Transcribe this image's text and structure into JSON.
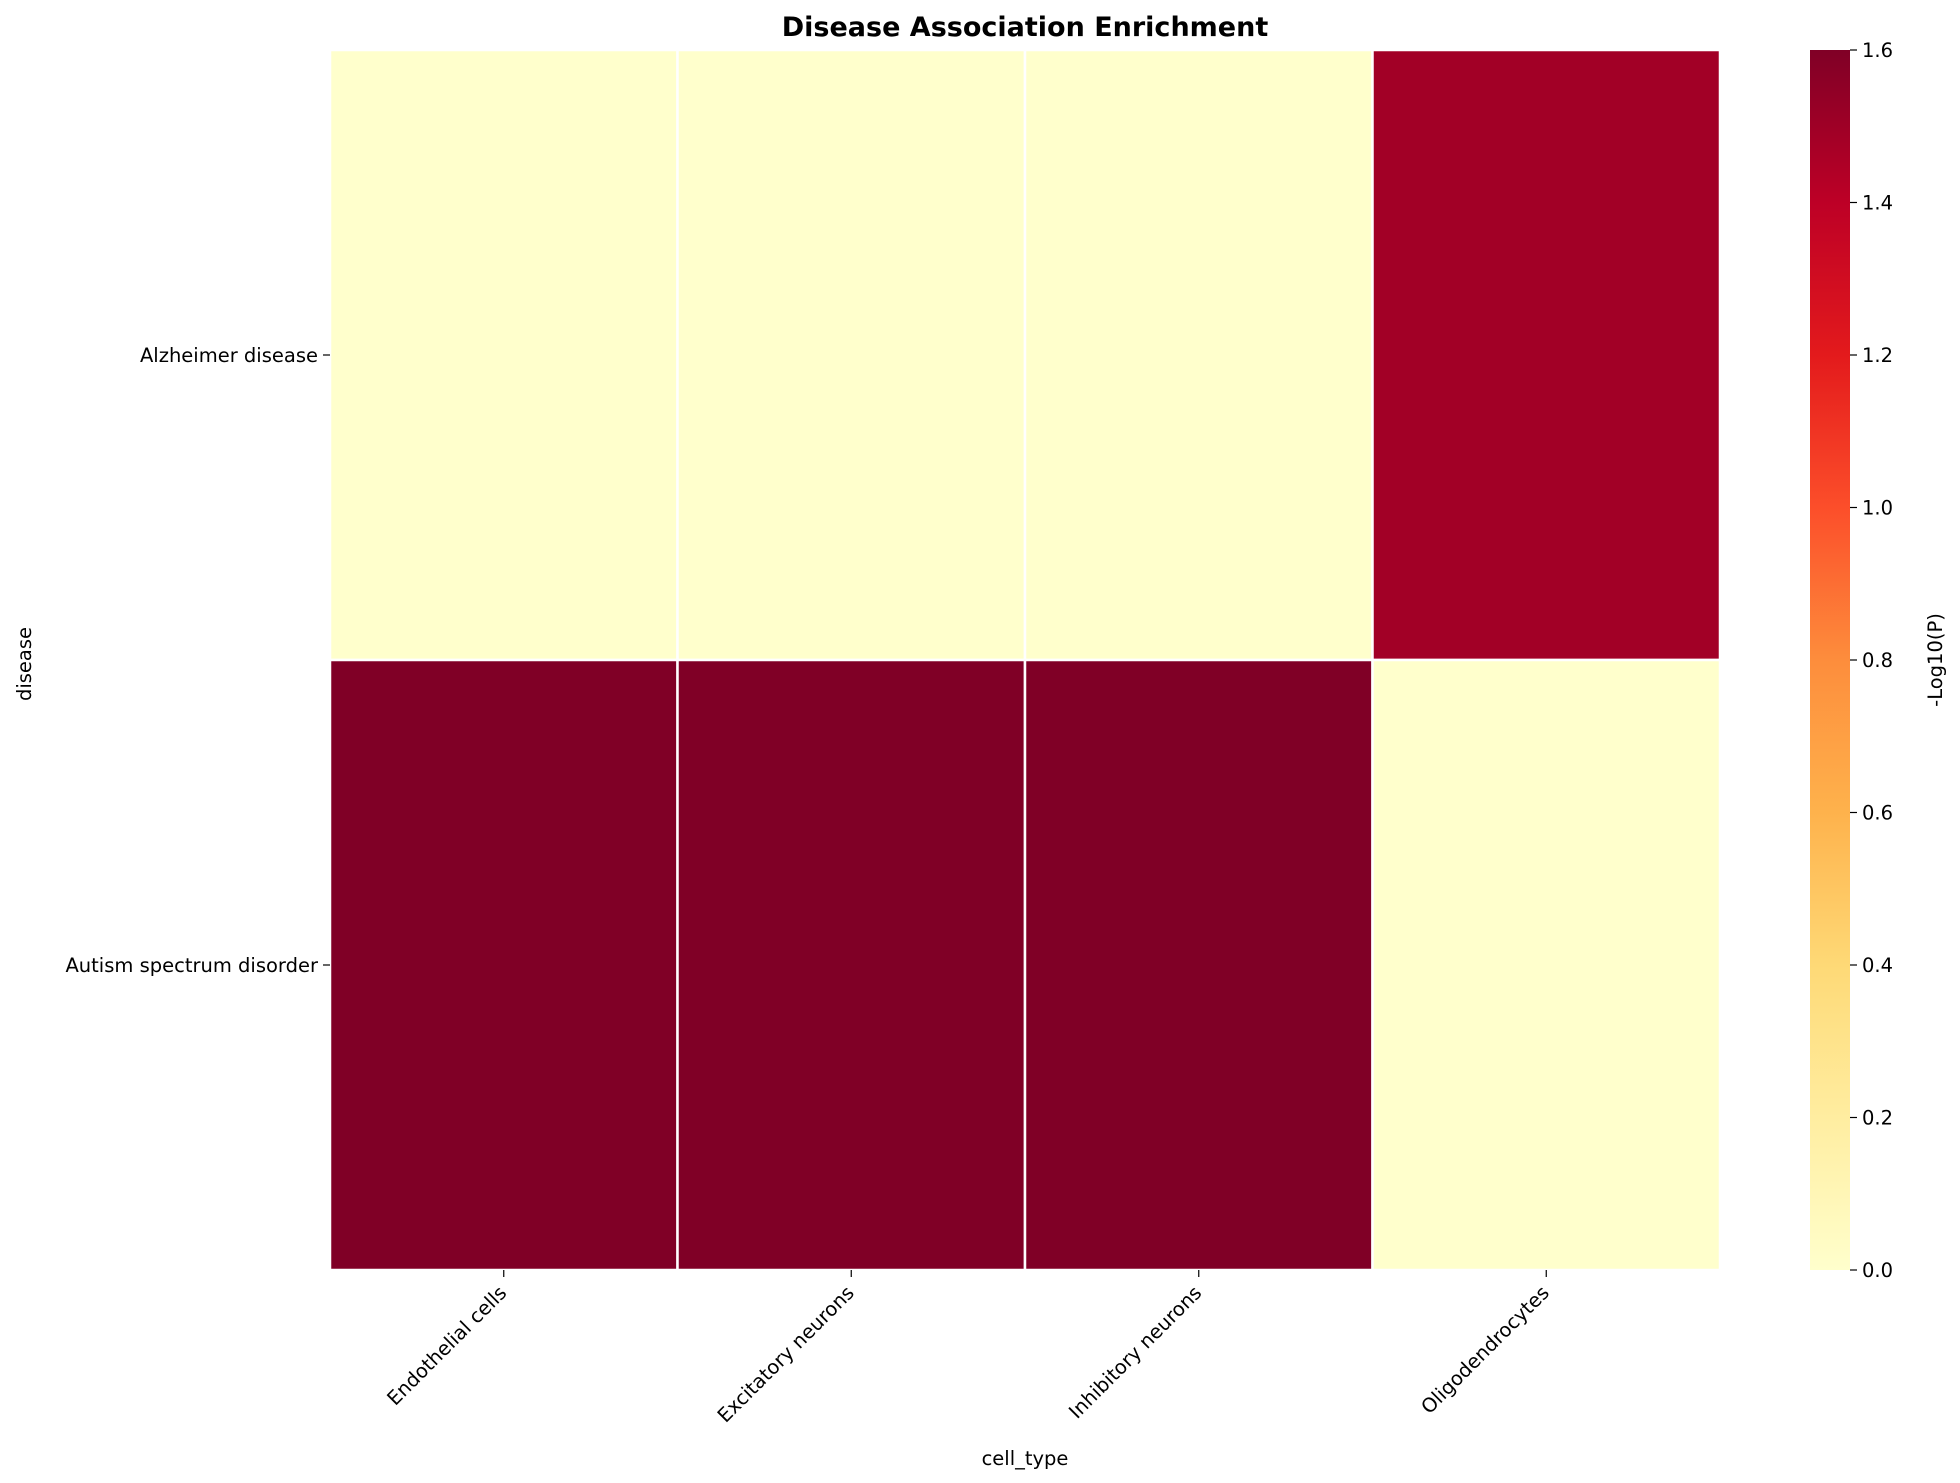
{
  "chart_data": {
    "type": "heatmap",
    "title": "Disease Association Enrichment",
    "xlabel": "cell_type",
    "ylabel": "disease",
    "x_categories": [
      "Endothelial cells",
      "Excitatory neurons",
      "Inhibitory neurons",
      "Oligodendrocytes"
    ],
    "y_categories": [
      "Alzheimer disease",
      "Autism spectrum disorder"
    ],
    "values": [
      [
        0.0,
        0.0,
        0.0,
        1.49
      ],
      [
        1.6,
        1.6,
        1.6,
        0.0
      ]
    ],
    "colorbar": {
      "label": "-Log10(P)",
      "range": [
        0.0,
        1.6
      ],
      "ticks": [
        "0.0",
        "0.2",
        "0.4",
        "0.6",
        "0.8",
        "1.0",
        "1.2",
        "1.4",
        "1.6"
      ],
      "colormap": "YlOrRd",
      "colors": [
        "#ffffcc",
        "#ffeda0",
        "#fed976",
        "#feb24c",
        "#fd8d3c",
        "#fc4e2a",
        "#e31a1c",
        "#bd0026",
        "#800026"
      ]
    },
    "cell_border_color": "#ffffff",
    "grid": false
  }
}
